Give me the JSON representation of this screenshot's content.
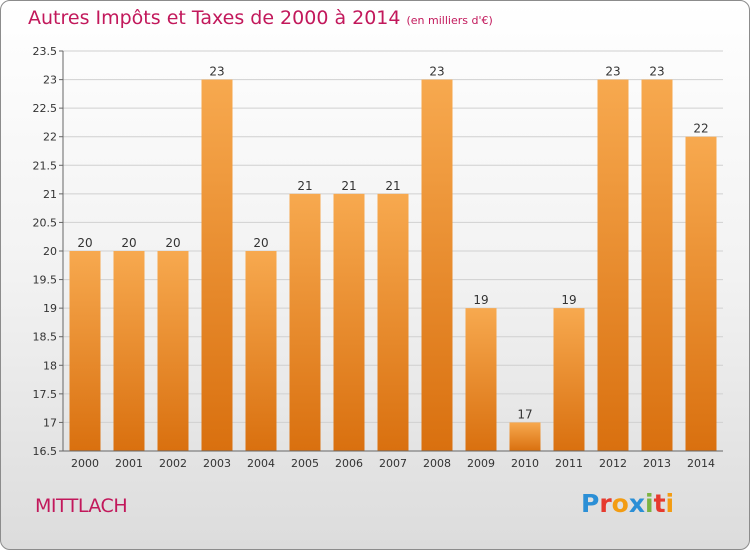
{
  "title": "Autres Impôts et Taxes de 2000 à 2014",
  "subtitle": "(en milliers d'€)",
  "town": "MITTLACH",
  "logo": {
    "letters": [
      "P",
      "r",
      "o",
      "x",
      "i",
      "t",
      "i"
    ],
    "colors": [
      "#2b8fd6",
      "#e63a2e",
      "#f39c12",
      "#2b8fd6",
      "#7cb342",
      "#e63a2e",
      "#f39c12"
    ]
  },
  "chart_data": {
    "type": "bar",
    "title": "Autres Impôts et Taxes de 2000 à 2014",
    "categories": [
      "2000",
      "2001",
      "2002",
      "2003",
      "2004",
      "2005",
      "2006",
      "2007",
      "2008",
      "2009",
      "2010",
      "2011",
      "2012",
      "2013",
      "2014"
    ],
    "values": [
      20,
      20,
      20,
      23,
      20,
      21,
      21,
      21,
      23,
      19,
      17,
      19,
      23,
      23,
      22
    ],
    "value_labels": [
      "20",
      "20",
      "20",
      "23",
      "20",
      "21",
      "21",
      "21",
      "23",
      "19",
      "17",
      "19",
      "23",
      "23",
      "22"
    ],
    "yticks": [
      "16.5",
      "17",
      "17.5",
      "18",
      "18.5",
      "19",
      "19.5",
      "20",
      "20.5",
      "21",
      "21.5",
      "22",
      "22.5",
      "23",
      "23.5"
    ],
    "ylim": [
      16.5,
      23.5
    ],
    "grid": true,
    "bar_color": "#f0922e"
  }
}
